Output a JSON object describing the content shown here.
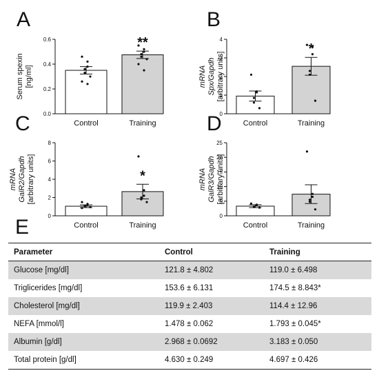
{
  "panels": [
    {
      "letter": "A",
      "ylabel_lines": [
        {
          "t": "Serum spexin",
          "it": false
        },
        {
          "t": "[ng/ml]",
          "it": false
        }
      ]
    },
    {
      "letter": "B",
      "ylabel_lines": [
        {
          "t": "mRNA",
          "it": true
        },
        {
          "t": "Spx/Gapdh",
          "it": true
        },
        {
          "t": "[arbitrary units]",
          "it": false
        }
      ]
    },
    {
      "letter": "C",
      "ylabel_lines": [
        {
          "t": "mRNA",
          "it": true
        },
        {
          "t": "GalR2/Gapdh",
          "it": true
        },
        {
          "t": "[arbitrary units]",
          "it": false
        }
      ]
    },
    {
      "letter": "D",
      "ylabel_lines": [
        {
          "t": "mRNA",
          "it": true
        },
        {
          "t": "GalR3/Gapdh",
          "it": true
        },
        {
          "t": "[arbitrary units]",
          "it": false
        }
      ]
    },
    {
      "letter": "E"
    }
  ],
  "chart_data": [
    {
      "type": "bar",
      "categories": [
        "Control",
        "Training"
      ],
      "values": [
        0.35,
        0.475
      ],
      "errors": [
        0.03,
        0.03
      ],
      "points": [
        [
          0.46,
          0.42,
          0.38,
          0.36,
          0.33,
          0.3,
          0.26,
          0.24
        ],
        [
          0.55,
          0.52,
          0.5,
          0.48,
          0.46,
          0.44,
          0.4,
          0.35
        ]
      ],
      "ylim": [
        0,
        0.6
      ],
      "yticks": [
        "0.0",
        "0.2",
        "0.4",
        "0.6"
      ],
      "significance": [
        "",
        "**"
      ],
      "colors": [
        "#ffffff",
        "#d3d3d3"
      ]
    },
    {
      "type": "bar",
      "categories": [
        "Control",
        "Training"
      ],
      "values": [
        0.95,
        2.55
      ],
      "errors": [
        0.27,
        0.48
      ],
      "points": [
        [
          2.1,
          1.2,
          1.15,
          0.85,
          0.6,
          0.3
        ],
        [
          3.7,
          3.6,
          3.2,
          2.3,
          2.1,
          0.7
        ]
      ],
      "ylim": [
        0,
        4
      ],
      "yticks": [
        "0",
        "1",
        "2",
        "3",
        "4"
      ],
      "significance": [
        "",
        "*"
      ],
      "colors": [
        "#ffffff",
        "#d3d3d3"
      ]
    },
    {
      "type": "bar",
      "categories": [
        "Control",
        "Training"
      ],
      "values": [
        1.05,
        2.65
      ],
      "errors": [
        0.15,
        0.8
      ],
      "points": [
        [
          1.5,
          1.3,
          1.2,
          1.1,
          1.05,
          0.95,
          0.85
        ],
        [
          6.5,
          2.8,
          2.2,
          2.0,
          1.8,
          1.5
        ]
      ],
      "ylim": [
        0,
        8
      ],
      "yticks": [
        "0",
        "2",
        "4",
        "6",
        "8"
      ],
      "significance": [
        "",
        "*"
      ],
      "colors": [
        "#ffffff",
        "#d3d3d3"
      ]
    },
    {
      "type": "bar",
      "categories": [
        "Control",
        "Training"
      ],
      "values": [
        3.3,
        7.4
      ],
      "errors": [
        0.5,
        3.2
      ],
      "points": [
        [
          4.2,
          3.8,
          3.6,
          3.2,
          3.0,
          2.8
        ],
        [
          22,
          7.5,
          6.5,
          5.5,
          4.8,
          2.2
        ]
      ],
      "ylim": [
        0,
        25
      ],
      "yticks": [
        "0",
        "5",
        "10",
        "15",
        "20",
        "25"
      ],
      "significance": [
        "",
        ""
      ],
      "colors": [
        "#ffffff",
        "#d3d3d3"
      ]
    }
  ],
  "table": {
    "headers": [
      "Parameter",
      "Control",
      "Training"
    ],
    "rows": [
      [
        "Glucose [mg/dl]",
        "121.8 ± 4.802",
        "119.0 ± 6.498"
      ],
      [
        "Triglicerides [mg/dl]",
        "153.6 ± 6.131",
        "174.5 ± 8.843*"
      ],
      [
        "Cholesterol [mg/dl]",
        "119.9 ± 2.403",
        "114.4 ± 12.96"
      ],
      [
        "NEFA [mmol/l]",
        "1.478 ± 0.062",
        "1.793 ± 0.045*"
      ],
      [
        "Albumin [g/dl]",
        "2.968 ± 0.0692",
        "3.183 ± 0.050"
      ],
      [
        "Total protein [g/dl]",
        "4.630 ± 0.249",
        "4.697 ± 0.426"
      ]
    ]
  }
}
